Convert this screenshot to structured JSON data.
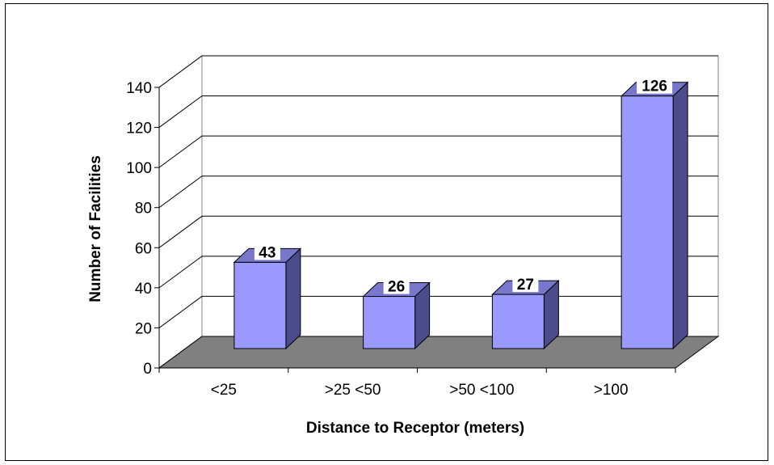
{
  "chart_data": {
    "type": "bar",
    "style": "3d-column",
    "categories": [
      "<25",
      ">25 <50",
      ">50 <100",
      ">100"
    ],
    "values": [
      43,
      26,
      27,
      126
    ],
    "xlabel": "Distance to Receptor (meters)",
    "ylabel": "Number of Facilities",
    "ylim": [
      0,
      140
    ],
    "yticks": [
      0,
      20,
      40,
      60,
      80,
      100,
      120,
      140
    ],
    "grid": true,
    "legend": "none",
    "data_labels": true,
    "colors": {
      "bar_front": "#9999FF",
      "bar_side": "#4C4C8C",
      "bar_top": "#7777CC",
      "floor": "#808080",
      "gridline": "#000000"
    }
  }
}
